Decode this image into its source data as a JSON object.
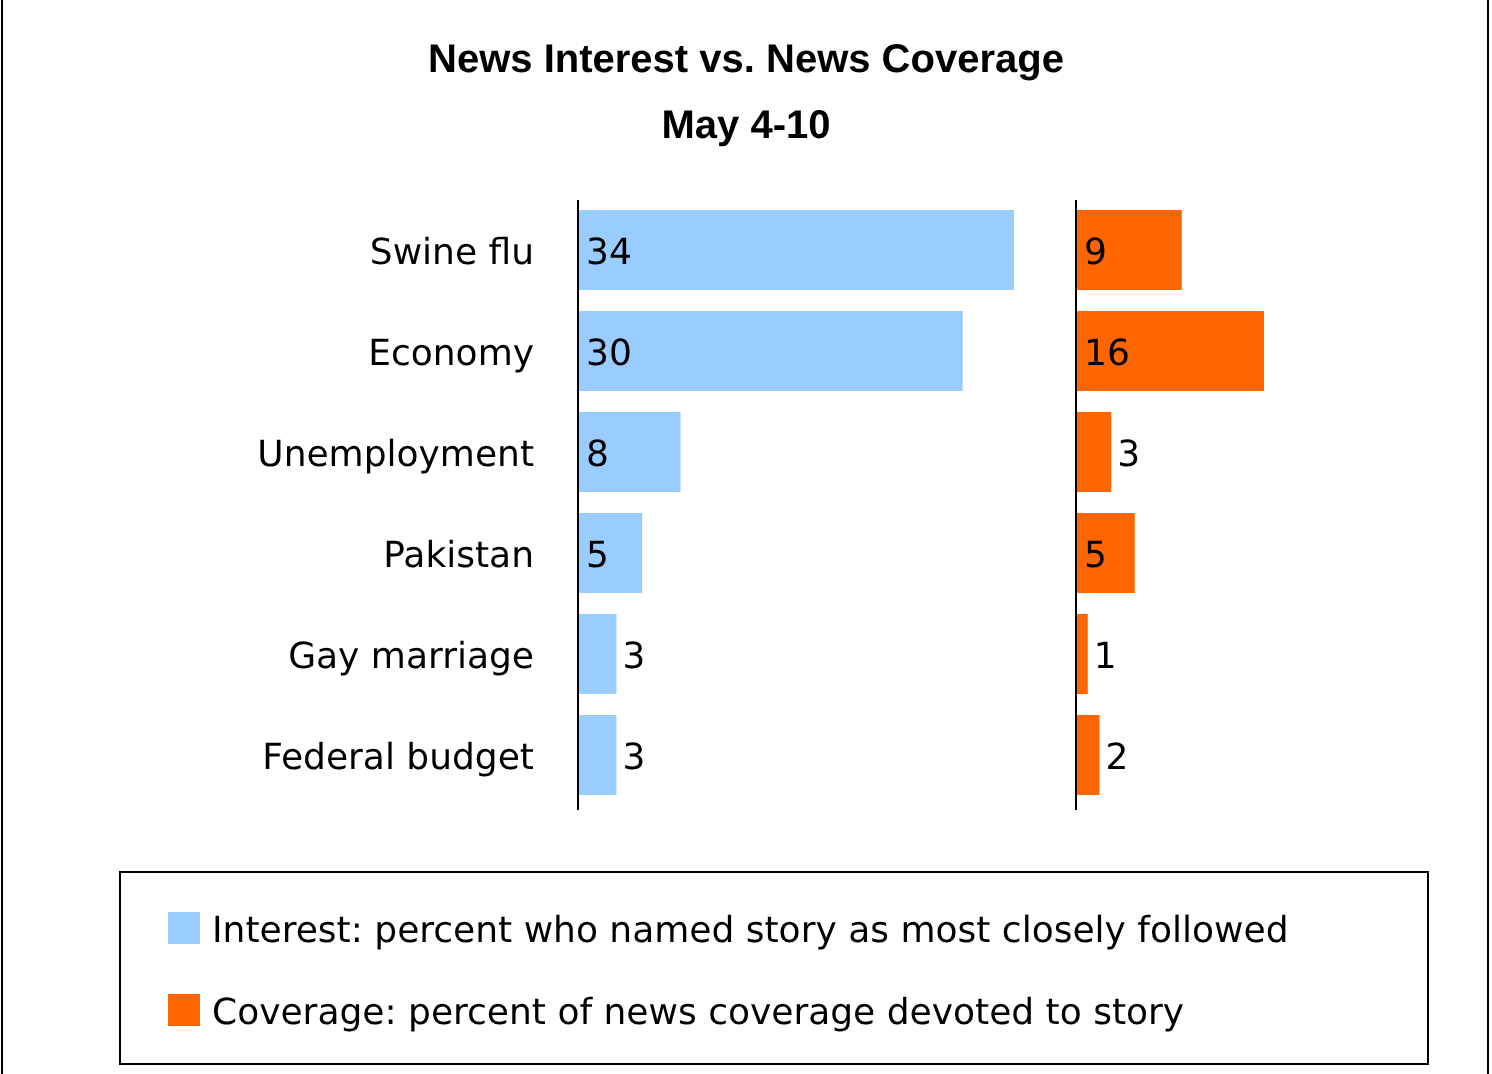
{
  "chart_data": [
    {
      "type": "bar",
      "orientation": "horizontal",
      "title": "News Interest vs. News Coverage",
      "subtitle": "May 4-10",
      "categories": [
        "Swine flu",
        "Economy",
        "Unemployment",
        "Pakistan",
        "Gay marriage",
        "Federal budget"
      ],
      "series": [
        {
          "name": "Interest: percent who named story as most closely followed",
          "color": "#99ccff",
          "values": [
            34,
            30,
            8,
            5,
            3,
            3
          ]
        }
      ],
      "data_labels": true,
      "legend": "bottom"
    },
    {
      "type": "bar",
      "orientation": "horizontal",
      "categories": [
        null,
        null,
        null,
        null,
        null,
        null
      ],
      "series": [
        {
          "name": "Coverage: percent of news coverage devoted to story",
          "color": "#ff6600",
          "values": [
            9,
            16,
            3,
            5,
            1,
            2
          ]
        }
      ],
      "data_labels": true,
      "legend": "bottom"
    }
  ]
}
